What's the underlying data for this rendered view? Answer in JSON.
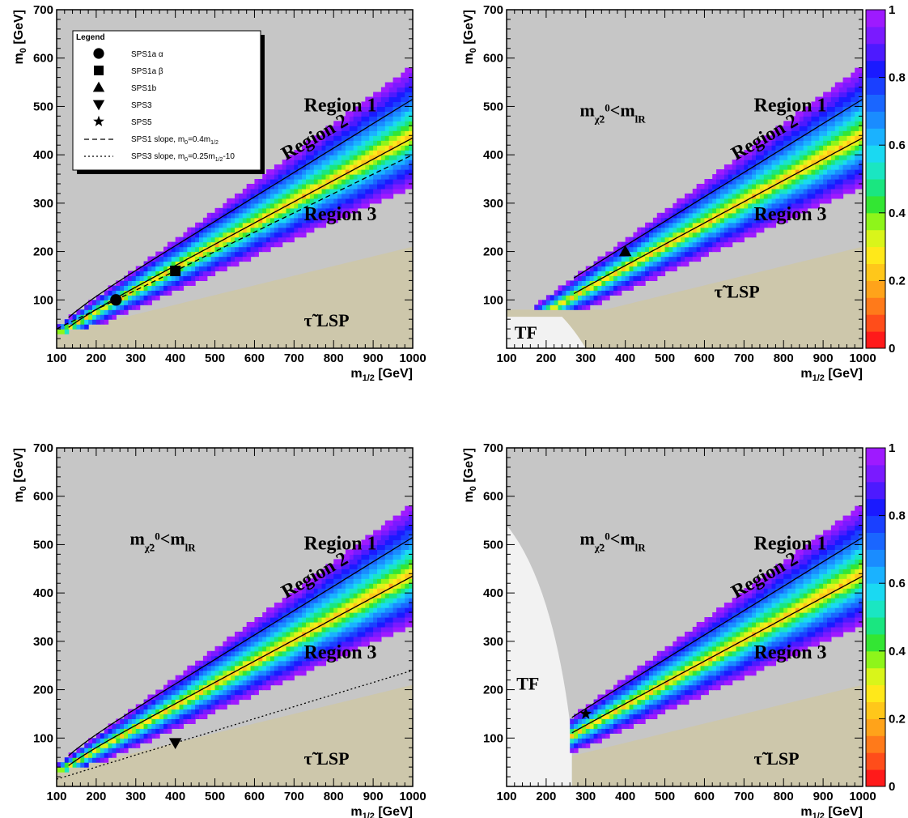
{
  "chart_data": [
    {
      "type": "heatmap",
      "panel": "top-left",
      "xlabel": "m",
      "xlabel_sub": "1/2",
      "xlabel_unit": " [GeV]",
      "ylabel": "m",
      "ylabel_sub": "0",
      "ylabel_unit": " [GeV]",
      "xlim": [
        100,
        1000
      ],
      "ylim": [
        0,
        700
      ],
      "x_ticks": [
        "100",
        "200",
        "300",
        "400",
        "500",
        "600",
        "700",
        "800",
        "900",
        "1000"
      ],
      "y_ticks": [
        "100",
        "200",
        "300",
        "400",
        "500",
        "600",
        "700"
      ],
      "regions": [
        "Region 1",
        "Region 2",
        "Region 3"
      ],
      "zone_labels": [
        "τ̃ LSP"
      ],
      "mass_label": null,
      "show_tf": false,
      "sps_points": [
        {
          "marker": "circle",
          "x": 250,
          "y": 100
        },
        {
          "marker": "square",
          "x": 400,
          "y": 160
        }
      ],
      "sps_lines": [
        {
          "style": "dashed",
          "slope": 0.4,
          "intercept": 0
        }
      ],
      "legend": {
        "title": "Legend",
        "entries": [
          {
            "marker": "circle",
            "text": "SPS1a α"
          },
          {
            "marker": "square",
            "text": "SPS1a β"
          },
          {
            "marker": "triangle-up",
            "text": "SPS1b"
          },
          {
            "marker": "triangle-down",
            "text": "SPS3"
          },
          {
            "marker": "star",
            "text": "SPS5"
          },
          {
            "marker": "dashed",
            "text": "SPS1 slope, m",
            "sub": "0",
            "rest": "=0.4m",
            "sub2": "1/2",
            "rest2": ""
          },
          {
            "marker": "dotted",
            "text": "SPS3 slope, m",
            "sub": "0",
            "rest": "=0.25m",
            "sub2": "1/2",
            "rest2": "-10"
          }
        ]
      },
      "colorbar": false
    },
    {
      "type": "heatmap",
      "panel": "top-right",
      "xlabel": "m",
      "xlabel_sub": "1/2",
      "xlabel_unit": " [GeV]",
      "ylabel": "m",
      "ylabel_sub": "0",
      "ylabel_unit": " [GeV]",
      "xlim": [
        100,
        1000
      ],
      "ylim": [
        0,
        700
      ],
      "x_ticks": [
        "100",
        "200",
        "300",
        "400",
        "500",
        "600",
        "700",
        "800",
        "900",
        "1000"
      ],
      "y_ticks": [
        "100",
        "200",
        "300",
        "400",
        "500",
        "600",
        "700"
      ],
      "regions": [
        "Region 1",
        "Region 2",
        "Region 3"
      ],
      "zone_labels": [
        "τ̃ LSP",
        "TF"
      ],
      "mass_label": {
        "m": "m",
        "sub1": "χ̃",
        "sub1b": "2",
        "sup": "0",
        "lt": "<m",
        "sub2": "l",
        "sub2b": "R"
      },
      "show_tf": true,
      "sps_points": [
        {
          "marker": "triangle-up",
          "x": 400,
          "y": 200
        }
      ],
      "sps_lines": [],
      "colorbar": true,
      "colorbar_ticks": [
        "0",
        "0.2",
        "0.4",
        "0.6",
        "0.8",
        "1"
      ]
    },
    {
      "type": "heatmap",
      "panel": "bottom-left",
      "xlabel": "m",
      "xlabel_sub": "1/2",
      "xlabel_unit": " [GeV]",
      "ylabel": "m",
      "ylabel_sub": "0",
      "ylabel_unit": " [GeV]",
      "xlim": [
        100,
        1000
      ],
      "ylim": [
        0,
        700
      ],
      "x_ticks": [
        "100",
        "200",
        "300",
        "400",
        "500",
        "600",
        "700",
        "800",
        "900",
        "1000"
      ],
      "y_ticks": [
        "100",
        "200",
        "300",
        "400",
        "500",
        "600",
        "700"
      ],
      "regions": [
        "Region 1",
        "Region 2",
        "Region 3"
      ],
      "zone_labels": [
        "τ̃ LSP"
      ],
      "mass_label": {
        "m": "m",
        "sub1": "χ̃",
        "sub1b": "2",
        "sup": "0",
        "lt": "<m",
        "sub2": "l",
        "sub2b": "R"
      },
      "show_tf": false,
      "sps_points": [
        {
          "marker": "triangle-down",
          "x": 400,
          "y": 90
        }
      ],
      "sps_lines": [
        {
          "style": "dotted",
          "slope": 0.25,
          "intercept": -10
        }
      ],
      "colorbar": false
    },
    {
      "type": "heatmap",
      "panel": "bottom-right",
      "xlabel": "m",
      "xlabel_sub": "1/2",
      "xlabel_unit": " [GeV]",
      "ylabel": "m",
      "ylabel_sub": "0",
      "ylabel_unit": " [GeV]",
      "xlim": [
        100,
        1000
      ],
      "ylim": [
        0,
        700
      ],
      "x_ticks": [
        "100",
        "200",
        "300",
        "400",
        "500",
        "600",
        "700",
        "800",
        "900",
        "1000"
      ],
      "y_ticks": [
        "100",
        "200",
        "300",
        "400",
        "500",
        "600",
        "700"
      ],
      "regions": [
        "Region 1",
        "Region 2",
        "Region 3"
      ],
      "zone_labels": [
        "τ̃ LSP",
        "TF"
      ],
      "mass_label": {
        "m": "m",
        "sub1": "χ̃",
        "sub1b": "2",
        "sup": "0",
        "lt": "<m",
        "sub2": "l",
        "sub2b": "R"
      },
      "show_tf": true,
      "sps_points": [
        {
          "marker": "star",
          "x": 300,
          "y": 150
        }
      ],
      "sps_lines": [],
      "colorbar": true,
      "colorbar_ticks": [
        "0",
        "0.2",
        "0.4",
        "0.6",
        "0.8",
        "1"
      ]
    }
  ],
  "colors": {
    "excluded_grey": "#c6c6c6",
    "stau_lsp": "#cdc7ab",
    "tf": "#f2f2f2",
    "palette": [
      "#ff1a1a",
      "#ff4d1a",
      "#ff7a1a",
      "#ffa31a",
      "#ffc71a",
      "#ffe81a",
      "#d9f51a",
      "#8ef51a",
      "#33e633",
      "#1ae680",
      "#1ae6c2",
      "#1ad9f2",
      "#1ab2ff",
      "#1a8cff",
      "#1a66ff",
      "#1a40ff",
      "#1a1aff",
      "#4d1aff",
      "#7a1aff",
      "#9e1aff"
    ]
  }
}
